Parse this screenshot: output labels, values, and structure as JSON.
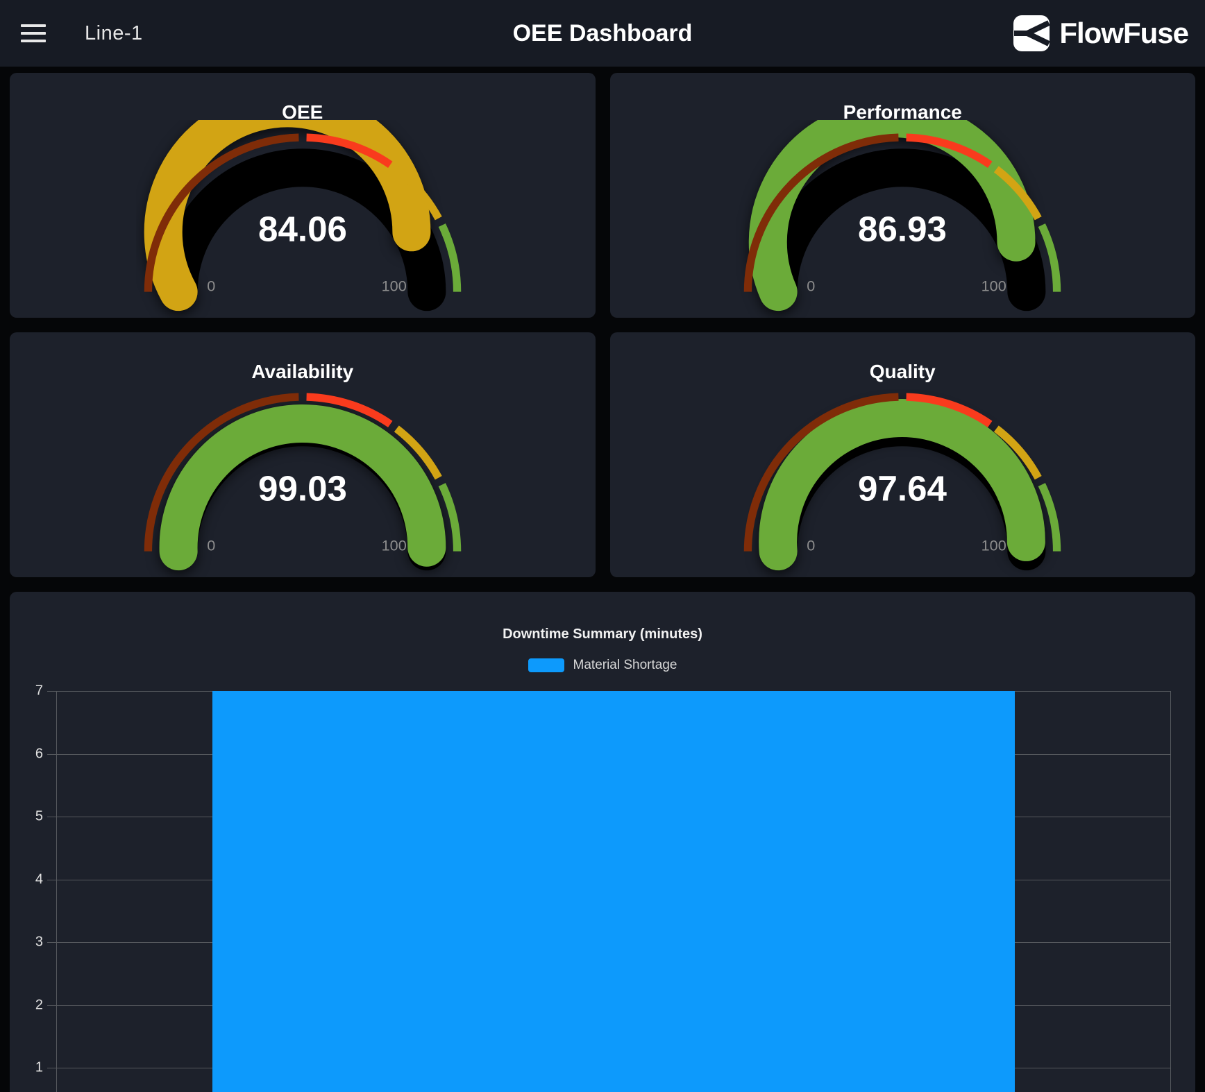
{
  "header": {
    "menu_icon": "hamburger",
    "nav_label": "Line-1",
    "title": "OEE Dashboard",
    "brand": "FlowFuse"
  },
  "gauge_scale": {
    "min_label": "0",
    "max_label": "100",
    "min": 0,
    "max": 100
  },
  "colors": {
    "appbar_bg": "#171b24",
    "card_bg": "#1d212b",
    "page_bg": "#050608",
    "gauge_track": "#000000",
    "gauge_value_text": "#ffffff",
    "gauge_minmax_text": "#8d8d8d",
    "gridline": "#56595e",
    "bar_blue": "#0d9afc"
  },
  "chart_data": [
    {
      "type": "gauge",
      "title": "OEE",
      "value": 84.06,
      "display": "84.06",
      "min": 0,
      "max": 100,
      "min_label": "0",
      "max_label": "100",
      "segments": [
        {
          "to": 50,
          "color": "#7f2c08"
        },
        {
          "to": 70,
          "color": "#f93b1d"
        },
        {
          "to": 85,
          "color": "#d2a414"
        },
        {
          "to": 100,
          "color": "#6bab39"
        }
      ]
    },
    {
      "type": "gauge",
      "title": "Performance",
      "value": 86.93,
      "display": "86.93",
      "min": 0,
      "max": 100,
      "min_label": "0",
      "max_label": "100",
      "segments": [
        {
          "to": 50,
          "color": "#7f2c08"
        },
        {
          "to": 70,
          "color": "#f93b1d"
        },
        {
          "to": 85,
          "color": "#d2a414"
        },
        {
          "to": 100,
          "color": "#6bab39"
        }
      ]
    },
    {
      "type": "gauge",
      "title": "Availability",
      "value": 99.03,
      "display": "99.03",
      "min": 0,
      "max": 100,
      "min_label": "0",
      "max_label": "100",
      "segments": [
        {
          "to": 50,
          "color": "#7f2c08"
        },
        {
          "to": 70,
          "color": "#f93b1d"
        },
        {
          "to": 85,
          "color": "#d2a414"
        },
        {
          "to": 100,
          "color": "#6bab39"
        }
      ]
    },
    {
      "type": "gauge",
      "title": "Quality",
      "value": 97.64,
      "display": "97.64",
      "min": 0,
      "max": 100,
      "min_label": "0",
      "max_label": "100",
      "segments": [
        {
          "to": 50,
          "color": "#7f2c08"
        },
        {
          "to": 70,
          "color": "#f93b1d"
        },
        {
          "to": 85,
          "color": "#d2a414"
        },
        {
          "to": 100,
          "color": "#6bab39"
        }
      ]
    },
    {
      "type": "bar",
      "title": "Downtime Summary (minutes)",
      "categories": [
        ""
      ],
      "series": [
        {
          "name": "Material Shortage",
          "values": [
            7
          ],
          "color": "#0d9afc"
        }
      ],
      "ylim": [
        0,
        7
      ],
      "yticks": [
        7,
        6,
        5,
        4,
        3,
        2,
        1
      ],
      "grid": true,
      "legend_position": "top",
      "bar_width_fraction": 0.72
    }
  ]
}
